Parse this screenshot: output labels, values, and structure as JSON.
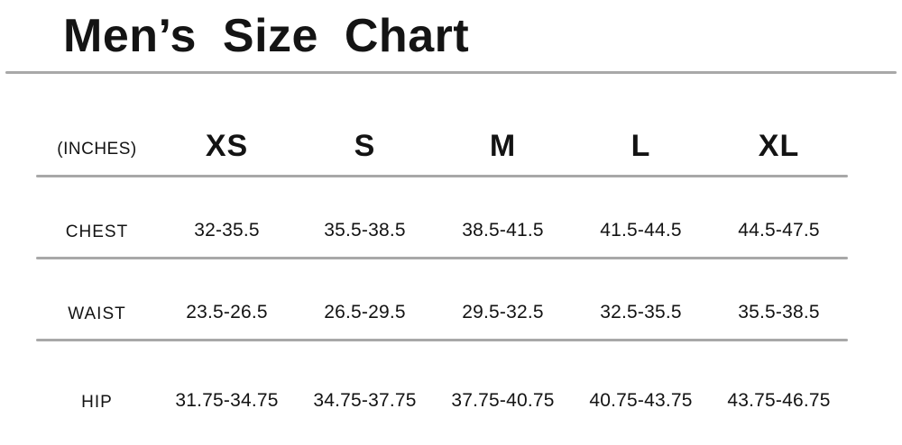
{
  "page": {
    "title": "Men’s Size Chart"
  },
  "chart_data": {
    "type": "table",
    "title": "Men’s Size Chart",
    "unit_label": "(INCHES)",
    "columns": [
      "XS",
      "S",
      "M",
      "L",
      "XL"
    ],
    "rows": [
      {
        "label": "CHEST",
        "values": [
          "32-35.5",
          "35.5-38.5",
          "38.5-41.5",
          "41.5-44.5",
          "44.5-47.5"
        ]
      },
      {
        "label": "WAIST",
        "values": [
          "23.5-26.5",
          "26.5-29.5",
          "29.5-32.5",
          "32.5-35.5",
          "35.5-38.5"
        ]
      },
      {
        "label": "HIP",
        "values": [
          "31.75-34.75",
          "34.75-37.75",
          "37.75-40.75",
          "40.75-43.75",
          "43.75-46.75"
        ]
      }
    ],
    "layout": {
      "header_position": "top",
      "row_label_position": "left",
      "grid": "horizontal-rules-only"
    },
    "colors": {
      "text": "#141414",
      "divider": "#a8a8a8",
      "background": "#ffffff"
    }
  }
}
